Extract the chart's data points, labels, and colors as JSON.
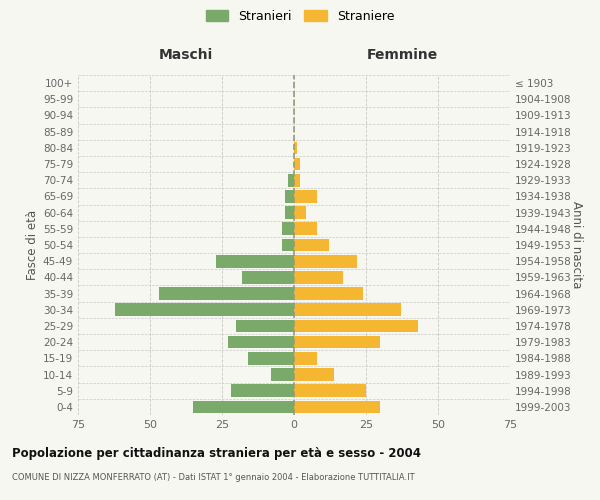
{
  "age_groups": [
    "0-4",
    "5-9",
    "10-14",
    "15-19",
    "20-24",
    "25-29",
    "30-34",
    "35-39",
    "40-44",
    "45-49",
    "50-54",
    "55-59",
    "60-64",
    "65-69",
    "70-74",
    "75-79",
    "80-84",
    "85-89",
    "90-94",
    "95-99",
    "100+"
  ],
  "birth_years": [
    "1999-2003",
    "1994-1998",
    "1989-1993",
    "1984-1988",
    "1979-1983",
    "1974-1978",
    "1969-1973",
    "1964-1968",
    "1959-1963",
    "1954-1958",
    "1949-1953",
    "1944-1948",
    "1939-1943",
    "1934-1938",
    "1929-1933",
    "1924-1928",
    "1919-1923",
    "1914-1918",
    "1909-1913",
    "1904-1908",
    "≤ 1903"
  ],
  "males": [
    35,
    22,
    8,
    16,
    23,
    20,
    62,
    47,
    18,
    27,
    4,
    4,
    3,
    3,
    2,
    0,
    0,
    0,
    0,
    0,
    0
  ],
  "females": [
    30,
    25,
    14,
    8,
    30,
    43,
    37,
    24,
    17,
    22,
    12,
    8,
    4,
    8,
    2,
    2,
    1,
    0,
    0,
    0,
    0
  ],
  "male_color": "#7aaa6a",
  "female_color": "#f5b731",
  "background_color": "#f7f7f2",
  "plot_bg_color": "#f7f7f2",
  "grid_color": "#c8c8c8",
  "dashed_line_color": "#999977",
  "title": "Popolazione per cittadinanza straniera per età e sesso - 2004",
  "subtitle": "COMUNE DI NIZZA MONFERRATO (AT) - Dati ISTAT 1° gennaio 2004 - Elaborazione TUTTITALIA.IT",
  "label_maschi": "Maschi",
  "label_femmine": "Femmine",
  "ylabel_left": "Fasce di età",
  "ylabel_right": "Anni di nascita",
  "legend_stranieri": "Stranieri",
  "legend_straniere": "Straniere",
  "xlim": 75
}
